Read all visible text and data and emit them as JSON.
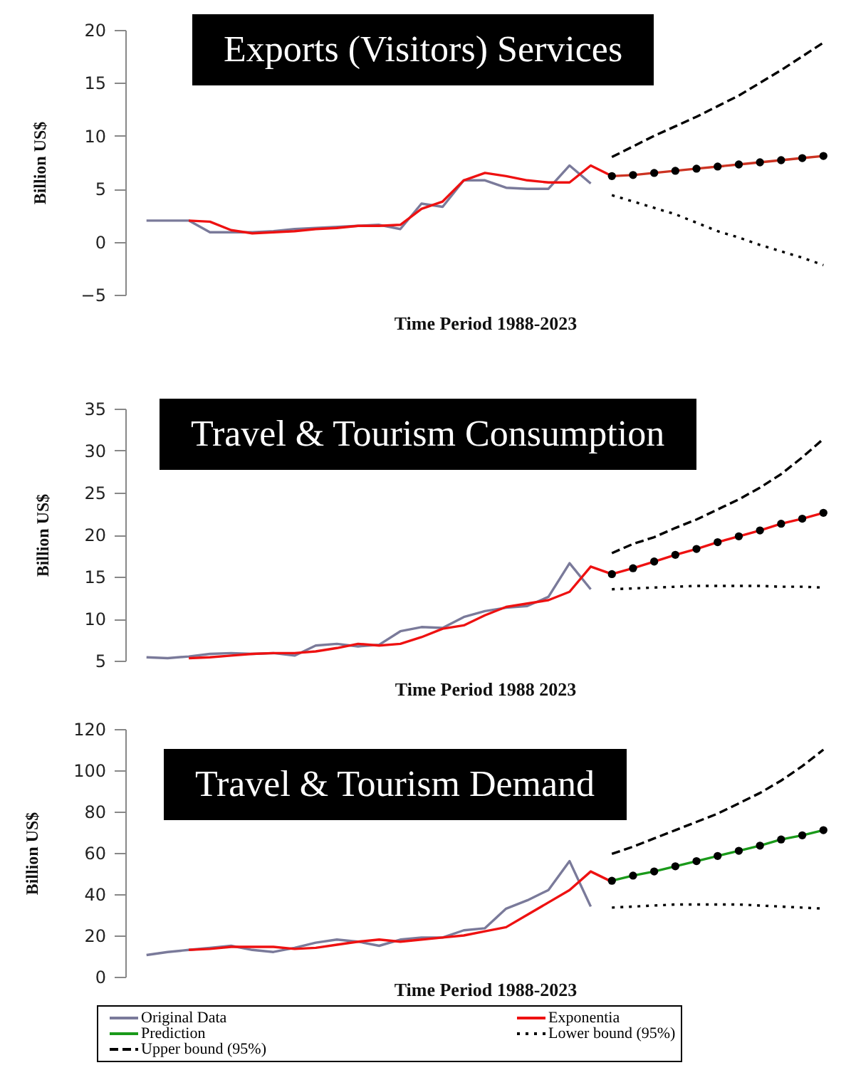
{
  "chart_data": [
    {
      "type": "line",
      "title": "Exports (Visitors) Services",
      "xlabel": "Time Period  1988-2023",
      "ylabel": "Billion US$",
      "categories": [
        null,
        null,
        null,
        null,
        null,
        null,
        null,
        null,
        null,
        null,
        null,
        null,
        null,
        null,
        null,
        null,
        null,
        null,
        null,
        null,
        null,
        null,
        null,
        null,
        null,
        null,
        null,
        null,
        null,
        null,
        null,
        null,
        null
      ],
      "ylim": [
        -5,
        20
      ],
      "yticks": [
        -5,
        0,
        5,
        10,
        15,
        20
      ],
      "tick_labels": "y",
      "legend": false,
      "series": [
        {
          "color": "#7a7a9a",
          "line_style": "solid",
          "values": [
            2,
            2,
            2,
            0.9,
            0.9,
            0.9,
            1,
            1.2,
            1.3,
            1.4,
            1.5,
            1.6,
            1.2,
            3.6,
            3.3,
            5.8,
            5.8,
            5.1,
            5,
            5,
            7.2,
            5.5,
            null,
            null,
            null,
            null,
            null,
            null,
            null,
            null,
            null,
            null,
            null
          ]
        },
        {
          "color": "#ee1111",
          "line_style": "solid",
          "values": [
            null,
            null,
            2,
            1.9,
            1.1,
            0.8,
            0.9,
            1,
            1.2,
            1.3,
            1.5,
            1.5,
            1.6,
            3.1,
            3.8,
            5.8,
            6.5,
            6.2,
            5.8,
            5.6,
            5.6,
            7.2,
            6.2,
            null,
            null,
            null,
            null,
            null,
            null,
            null,
            null,
            null,
            null
          ]
        },
        {
          "color": "#cc3322",
          "line_style": "solid",
          "marker": "circle",
          "values": [
            null,
            null,
            null,
            null,
            null,
            null,
            null,
            null,
            null,
            null,
            null,
            null,
            null,
            null,
            null,
            null,
            null,
            null,
            null,
            null,
            null,
            null,
            6.2,
            6.3,
            6.5,
            6.7,
            6.9,
            7.1,
            7.3,
            7.5,
            7.7,
            7.9,
            8.1
          ]
        },
        {
          "color": "#000000",
          "line_style": "dotted",
          "values": [
            null,
            null,
            null,
            null,
            null,
            null,
            null,
            null,
            null,
            null,
            null,
            null,
            null,
            null,
            null,
            null,
            null,
            null,
            null,
            null,
            null,
            null,
            4.4,
            3.8,
            3.2,
            2.6,
            1.8,
            1,
            0.4,
            -0.3,
            -0.9,
            -1.5,
            -2.2
          ]
        },
        {
          "color": "#000000",
          "line_style": "dashed",
          "values": [
            null,
            null,
            null,
            null,
            null,
            null,
            null,
            null,
            null,
            null,
            null,
            null,
            null,
            null,
            null,
            null,
            null,
            null,
            null,
            null,
            null,
            null,
            8,
            9,
            10,
            10.9,
            11.8,
            12.8,
            13.8,
            15,
            16.2,
            17.5,
            18.8
          ]
        }
      ]
    },
    {
      "type": "line",
      "title": "Travel & Tourism Consumption",
      "xlabel": "Time Period  1988  2023",
      "ylabel": "Billion US$",
      "categories": [
        null,
        null,
        null,
        null,
        null,
        null,
        null,
        null,
        null,
        null,
        null,
        null,
        null,
        null,
        null,
        null,
        null,
        null,
        null,
        null,
        null,
        null,
        null,
        null,
        null,
        null,
        null,
        null,
        null,
        null,
        null,
        null,
        null
      ],
      "ylim": [
        5,
        35
      ],
      "yticks": [
        5,
        10,
        15,
        20,
        25,
        30,
        35
      ],
      "tick_labels": "y",
      "legend": false,
      "series": [
        {
          "color": "#7a7a9a",
          "line_style": "solid",
          "values": [
            5.4,
            5.3,
            5.5,
            5.8,
            5.9,
            5.8,
            5.9,
            5.6,
            6.8,
            7,
            6.7,
            6.9,
            8.5,
            9,
            8.9,
            10.2,
            10.9,
            11.3,
            11.5,
            12.6,
            16.6,
            13.5,
            null,
            null,
            null,
            null,
            null,
            null,
            null,
            null,
            null,
            null,
            null
          ]
        },
        {
          "color": "#ee1111",
          "line_style": "solid",
          "values": [
            null,
            null,
            5.3,
            5.4,
            5.6,
            5.8,
            5.9,
            5.9,
            6.1,
            6.5,
            7,
            6.8,
            7,
            7.8,
            8.8,
            9.2,
            10.4,
            11.4,
            11.8,
            12.2,
            13.2,
            16.2,
            15.3,
            null,
            null,
            null,
            null,
            null,
            null,
            null,
            null,
            null,
            null
          ]
        },
        {
          "color": "#ee1111",
          "line_style": "solid",
          "marker": "circle",
          "values": [
            null,
            null,
            null,
            null,
            null,
            null,
            null,
            null,
            null,
            null,
            null,
            null,
            null,
            null,
            null,
            null,
            null,
            null,
            null,
            null,
            null,
            null,
            15.3,
            16,
            16.8,
            17.6,
            18.3,
            19.1,
            19.8,
            20.5,
            21.3,
            21.9,
            22.6
          ]
        },
        {
          "color": "#000000",
          "line_style": "dotted",
          "values": [
            null,
            null,
            null,
            null,
            null,
            null,
            null,
            null,
            null,
            null,
            null,
            null,
            null,
            null,
            null,
            null,
            null,
            null,
            null,
            null,
            null,
            null,
            13.5,
            13.6,
            13.7,
            13.8,
            13.9,
            13.9,
            13.9,
            13.9,
            13.8,
            13.8,
            13.7
          ]
        },
        {
          "color": "#000000",
          "line_style": "dashed",
          "values": [
            null,
            null,
            null,
            null,
            null,
            null,
            null,
            null,
            null,
            null,
            null,
            null,
            null,
            null,
            null,
            null,
            null,
            null,
            null,
            null,
            null,
            null,
            17.8,
            18.9,
            19.7,
            20.8,
            21.8,
            23,
            24.2,
            25.6,
            27.2,
            29.2,
            31.4
          ]
        }
      ]
    },
    {
      "type": "line",
      "title": "Travel & Tourism Demand",
      "xlabel": "Time Period  1988-2023",
      "ylabel": "Billion US$",
      "categories": [
        null,
        null,
        null,
        null,
        null,
        null,
        null,
        null,
        null,
        null,
        null,
        null,
        null,
        null,
        null,
        null,
        null,
        null,
        null,
        null,
        null,
        null,
        null,
        null,
        null,
        null,
        null,
        null,
        null,
        null,
        null,
        null,
        null
      ],
      "ylim": [
        0,
        120
      ],
      "yticks": [
        0,
        20,
        40,
        60,
        80,
        100,
        120
      ],
      "tick_labels": "y",
      "legend": "bottom",
      "series": [
        {
          "name": "Original Data",
          "color": "#7a7a9a",
          "line_style": "solid",
          "values": [
            10.5,
            12,
            13,
            14,
            15,
            13,
            12,
            14,
            16.5,
            18,
            17,
            15,
            18,
            19,
            19,
            22.5,
            23.5,
            33,
            37,
            42,
            56,
            34,
            null,
            null,
            null,
            null,
            null,
            null,
            null,
            null,
            null,
            null,
            null
          ]
        },
        {
          "name": "Exponentia",
          "color": "#ee1111",
          "line_style": "solid",
          "values": [
            null,
            null,
            13,
            13.5,
            14.5,
            14.5,
            14.5,
            13.5,
            14,
            15.5,
            17,
            18,
            17,
            18,
            19,
            20,
            22,
            24,
            30,
            36,
            42,
            51,
            46,
            null,
            null,
            null,
            null,
            null,
            null,
            null,
            null,
            null,
            null
          ]
        },
        {
          "name": "Prediction",
          "color": "#1a9a1a",
          "line_style": "solid",
          "marker": "circle",
          "values": [
            null,
            null,
            null,
            null,
            null,
            null,
            null,
            null,
            null,
            null,
            null,
            null,
            null,
            null,
            null,
            null,
            null,
            null,
            null,
            null,
            null,
            null,
            46.5,
            49,
            51,
            53.5,
            56,
            58.5,
            61,
            63.5,
            66.5,
            68.5,
            71
          ]
        },
        {
          "name": "Lower bound (95%)",
          "color": "#000000",
          "line_style": "dotted",
          "values": [
            null,
            null,
            null,
            null,
            null,
            null,
            null,
            null,
            null,
            null,
            null,
            null,
            null,
            null,
            null,
            null,
            null,
            null,
            null,
            null,
            null,
            null,
            33.5,
            34,
            34.5,
            35,
            35,
            35,
            35,
            34.5,
            34,
            33.5,
            33
          ]
        },
        {
          "name": "Upper bound (95%)",
          "color": "#000000",
          "line_style": "dashed",
          "values": [
            null,
            null,
            null,
            null,
            null,
            null,
            null,
            null,
            null,
            null,
            null,
            null,
            null,
            null,
            null,
            null,
            null,
            null,
            null,
            null,
            null,
            null,
            59.5,
            63,
            67,
            71,
            75,
            79,
            84,
            89,
            95,
            102,
            110
          ]
        }
      ]
    }
  ]
}
